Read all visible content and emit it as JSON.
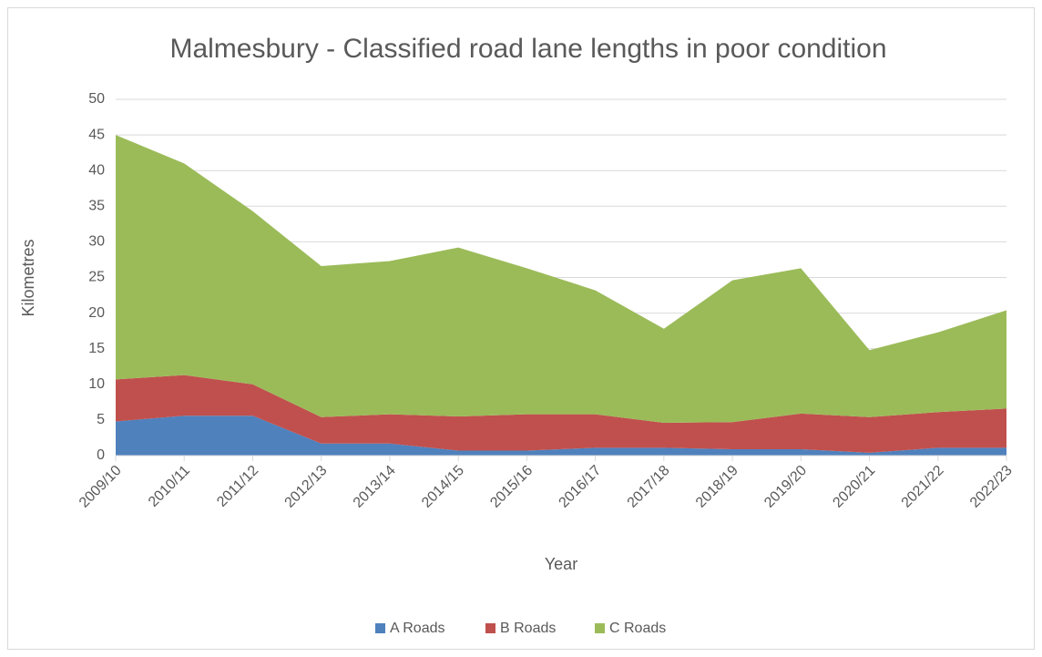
{
  "chart_data": {
    "type": "stacked_area",
    "title": "Malmesbury - Classified road lane lengths in poor condition",
    "x_label": "Year",
    "y_label": "Kilometres",
    "categories": [
      "2009/10",
      "2010/11",
      "2011/12",
      "2012/13",
      "2013/14",
      "2014/15",
      "2015/16",
      "2016/17",
      "2017/18",
      "2018/19",
      "2019/20",
      "2020/21",
      "2021/22",
      "2022/23"
    ],
    "series": [
      {
        "name": "A Roads",
        "color": "#4f81bd",
        "values": [
          4.8,
          5.6,
          5.6,
          1.7,
          1.7,
          0.7,
          0.7,
          1.1,
          1.1,
          0.9,
          0.9,
          0.4,
          1.1,
          1.1
        ]
      },
      {
        "name": "B Roads",
        "color": "#c0504d",
        "values": [
          5.9,
          5.7,
          4.4,
          3.7,
          4.1,
          4.8,
          5.1,
          4.7,
          3.5,
          3.8,
          5.0,
          5.0,
          5.0,
          5.5
        ]
      },
      {
        "name": "C Roads",
        "color": "#9bbb59",
        "values": [
          34.3,
          29.7,
          24.3,
          21.2,
          21.5,
          23.7,
          20.5,
          17.4,
          13.2,
          19.9,
          20.4,
          9.4,
          11.2,
          13.8
        ]
      }
    ],
    "ylim": [
      0,
      50
    ],
    "yticks": [
      0,
      5,
      10,
      15,
      20,
      25,
      30,
      35,
      40,
      45,
      50
    ],
    "grid": true,
    "legend": "bottom"
  }
}
